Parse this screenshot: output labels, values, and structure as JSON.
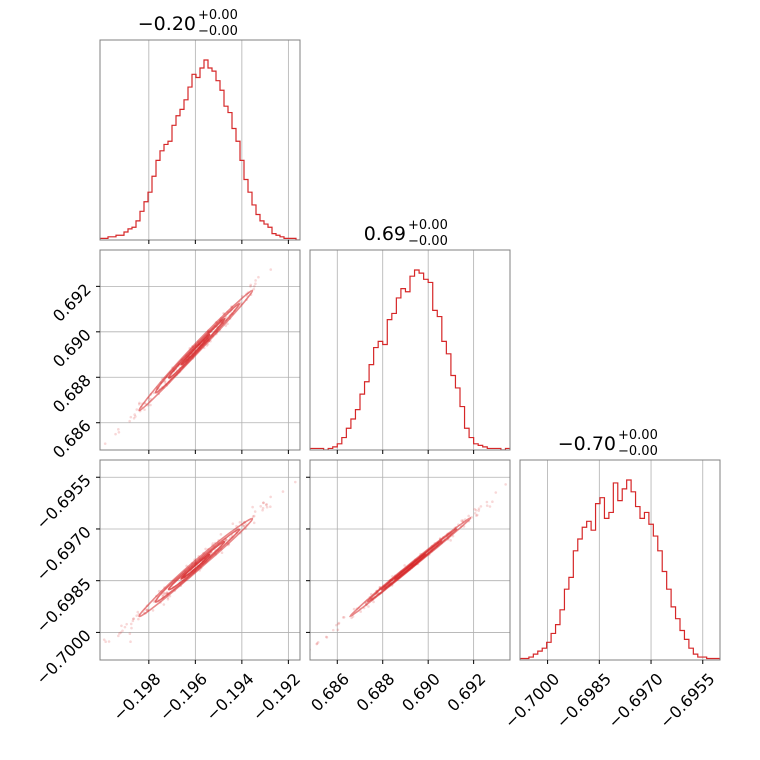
{
  "chart_data": {
    "type": "corner",
    "colors": {
      "series": "#d62728",
      "grid": "#b0b0b0",
      "frame": "#808080"
    },
    "parameters": [
      {
        "title_value": "−0.20",
        "title_plus": "+0.00",
        "title_minus": "−0.00",
        "mean": -0.196,
        "sigma": 0.0012,
        "range": [
          -0.2001,
          -0.1915
        ],
        "ticks": [
          -0.198,
          -0.196,
          -0.194,
          -0.192
        ],
        "tick_labels": [
          "−0.198",
          "−0.196",
          "−0.194",
          "−0.192"
        ],
        "hist_counts": [
          1,
          1,
          2,
          2,
          3,
          3,
          5,
          7,
          8,
          12,
          18,
          24,
          30,
          40,
          50,
          56,
          60,
          62,
          72,
          78,
          82,
          88,
          96,
          104,
          102,
          108,
          113,
          108,
          106,
          100,
          94,
          84,
          80,
          70,
          62,
          50,
          38,
          30,
          22,
          16,
          12,
          10,
          8,
          4,
          3,
          2,
          1,
          1,
          1,
          0
        ]
      },
      {
        "title_value": "0.69",
        "title_plus": "+0.00",
        "title_minus": "−0.00",
        "mean": 0.6892,
        "sigma": 0.0013,
        "range": [
          0.6848,
          0.6936
        ],
        "ticks": [
          0.686,
          0.688,
          0.69,
          0.692
        ],
        "tick_labels": [
          "0.686",
          "0.688",
          "0.690",
          "0.692"
        ],
        "hist_counts": [
          1,
          1,
          1,
          0,
          1,
          2,
          4,
          8,
          14,
          20,
          26,
          36,
          44,
          55,
          66,
          70,
          68,
          84,
          88,
          98,
          104,
          102,
          112,
          116,
          114,
          110,
          108,
          90,
          86,
          70,
          62,
          48,
          40,
          28,
          14,
          8,
          4,
          3,
          2,
          1,
          1,
          1,
          0,
          1
        ]
      },
      {
        "title_value": "−0.70",
        "title_plus": "+0.00",
        "title_minus": "−0.00",
        "mean": -0.6981,
        "sigma": 0.0007,
        "range": [
          -0.7008,
          -0.695
        ],
        "ticks": [
          -0.7,
          -0.6985,
          -0.697,
          -0.6955
        ],
        "tick_labels": [
          "−0.7000",
          "−0.6985",
          "−0.6970",
          "−0.6955"
        ],
        "hist_counts": [
          1,
          1,
          2,
          4,
          6,
          8,
          12,
          18,
          24,
          34,
          48,
          56,
          74,
          82,
          90,
          94,
          88,
          106,
          110,
          96,
          100,
          120,
          108,
          116,
          122,
          114,
          104,
          96,
          100,
          92,
          84,
          74,
          60,
          48,
          36,
          28,
          20,
          14,
          8,
          4,
          2,
          2,
          1,
          1,
          1
        ]
      }
    ],
    "correlations": {
      "0-1": 0.995,
      "0-2": 0.992,
      "1-2": 0.998
    },
    "grid": true
  }
}
